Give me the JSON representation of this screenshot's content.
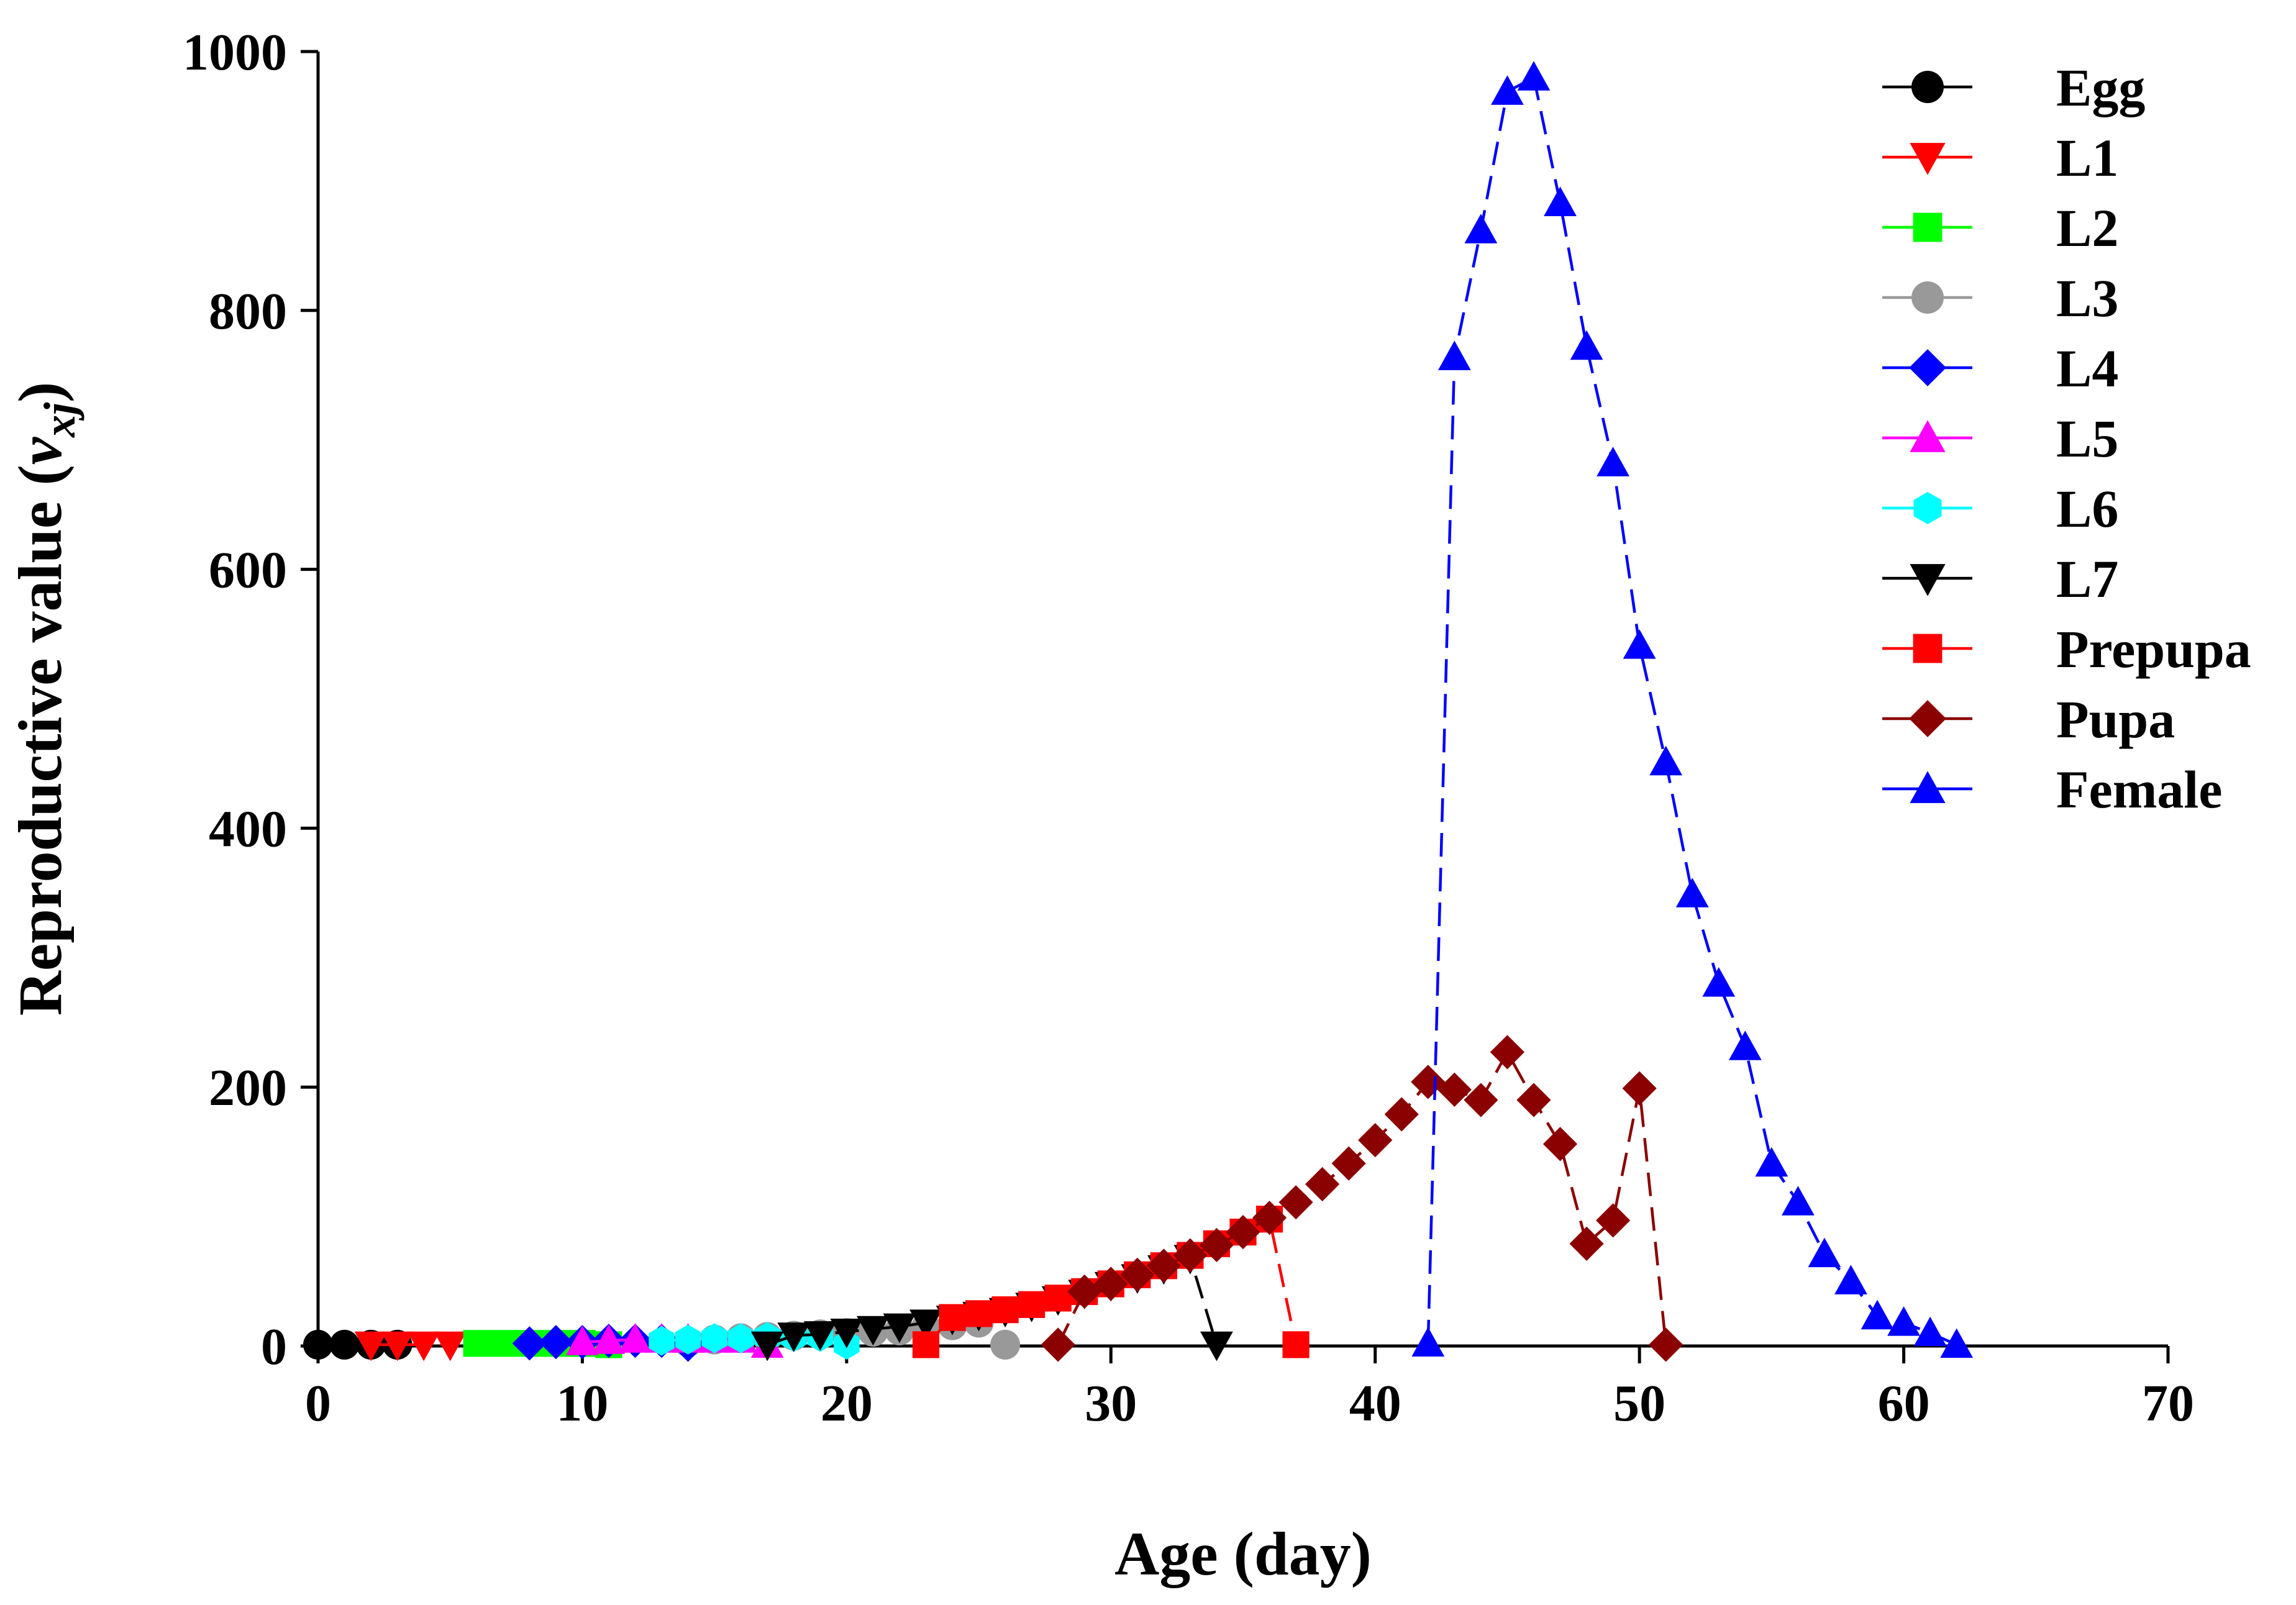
{
  "chart_data": {
    "type": "line",
    "xlabel": "Age (day)",
    "ylabel": {
      "prefix": "Reproductive value (",
      "italic": "v",
      "subscript": "xj",
      "suffix": ")"
    },
    "xlim": [
      0,
      70
    ],
    "ylim": [
      0,
      1000
    ],
    "xticks": [
      0,
      10,
      20,
      30,
      40,
      50,
      60,
      70
    ],
    "yticks": [
      0,
      200,
      400,
      600,
      800,
      1000
    ],
    "xtick_labels": [
      "0",
      "10",
      "20",
      "30",
      "40",
      "50",
      "60",
      "70"
    ],
    "ytick_labels": [
      "0",
      "200",
      "400",
      "600",
      "800",
      "1000"
    ],
    "grid": false,
    "legend_position": "top-right",
    "series": [
      {
        "name": "Egg",
        "color": "#000000",
        "marker": "circle",
        "x": [
          0,
          1,
          2,
          3
        ],
        "y": [
          1,
          1,
          1,
          1
        ]
      },
      {
        "name": "L1",
        "color": "#ff0000",
        "marker": "triangle-down",
        "x": [
          2,
          3,
          4,
          5
        ],
        "y": [
          1,
          1,
          1,
          1
        ]
      },
      {
        "name": "L2",
        "color": "#00ff00",
        "marker": "square",
        "x": [
          6,
          7,
          8,
          9,
          10,
          11
        ],
        "y": [
          2,
          2,
          2,
          2,
          2,
          1
        ]
      },
      {
        "name": "L3",
        "color": "#999999",
        "marker": "circle",
        "x": [
          14,
          15,
          16,
          17,
          18,
          19,
          20,
          21,
          22,
          23,
          24,
          25,
          26
        ],
        "y": [
          3,
          5,
          6,
          7,
          8,
          9,
          10,
          11,
          12,
          14,
          16,
          18,
          1
        ]
      },
      {
        "name": "L4",
        "color": "#0000ff",
        "marker": "diamond",
        "x": [
          8,
          9,
          10,
          11,
          12,
          13,
          14
        ],
        "y": [
          2,
          3,
          3,
          4,
          4,
          4,
          1
        ]
      },
      {
        "name": "L5",
        "color": "#ff00ff",
        "marker": "triangle-up",
        "x": [
          10,
          11,
          12,
          13,
          14,
          15,
          16,
          17
        ],
        "y": [
          3,
          4,
          5,
          5,
          5,
          5,
          5,
          1
        ]
      },
      {
        "name": "L6",
        "color": "#00ffff",
        "marker": "hexagon",
        "x": [
          13,
          14,
          15,
          16,
          17,
          18,
          19,
          20
        ],
        "y": [
          4,
          5,
          6,
          6,
          7,
          7,
          7,
          1
        ]
      },
      {
        "name": "L7",
        "color": "#000000",
        "marker": "triangle-down",
        "x": [
          17,
          18,
          19,
          20,
          21,
          22,
          23,
          24,
          25,
          26,
          27,
          28,
          29,
          30,
          31,
          32,
          33,
          34
        ],
        "y": [
          1,
          8,
          9,
          11,
          13,
          15,
          18,
          21,
          24,
          27,
          31,
          36,
          41,
          47,
          53,
          60,
          68,
          1
        ]
      },
      {
        "name": "Prepupa",
        "color": "#ff0000",
        "marker": "square",
        "x": [
          23,
          24,
          25,
          26,
          27,
          28,
          29,
          30,
          31,
          32,
          33,
          34,
          35,
          36,
          37
        ],
        "y": [
          1,
          22,
          25,
          28,
          32,
          37,
          42,
          48,
          55,
          62,
          70,
          79,
          88,
          98,
          1
        ]
      },
      {
        "name": "Pupa",
        "color": "#8b0000",
        "marker": "diamond",
        "x": [
          28,
          29,
          30,
          31,
          32,
          33,
          34,
          35,
          36,
          37,
          38,
          39,
          40,
          41,
          42,
          43,
          44,
          45,
          46,
          47,
          48,
          49,
          50,
          51
        ],
        "y": [
          1,
          42,
          48,
          55,
          62,
          70,
          78,
          88,
          99,
          111,
          125,
          141,
          159,
          179,
          204,
          198,
          190,
          227,
          190,
          156,
          79,
          97,
          199,
          1
        ]
      },
      {
        "name": "Female",
        "color": "#0000ff",
        "marker": "triangle-up",
        "x": [
          42,
          43,
          44,
          45,
          46,
          47,
          48,
          49,
          50,
          51,
          52,
          53,
          54,
          55,
          56,
          57,
          58,
          59,
          60,
          61,
          62
        ],
        "y": [
          2,
          764,
          862,
          969,
          980,
          883,
          772,
          682,
          541,
          451,
          349,
          280,
          231,
          141,
          111,
          71,
          50,
          23,
          18,
          10,
          1
        ]
      }
    ]
  }
}
